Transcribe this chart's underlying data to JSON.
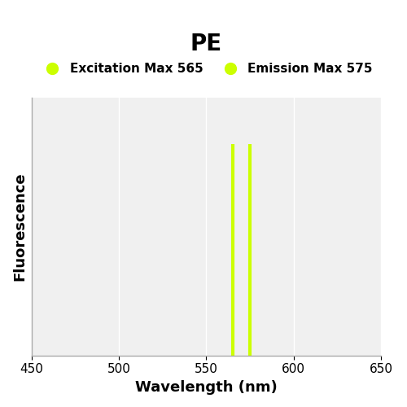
{
  "title": "PE",
  "title_fontsize": 20,
  "title_fontweight": "bold",
  "xlabel": "Wavelength (nm)",
  "ylabel": "Fluorescence",
  "xlabel_fontsize": 13,
  "ylabel_fontsize": 13,
  "xlabel_fontweight": "bold",
  "ylabel_fontweight": "bold",
  "xlim": [
    450,
    650
  ],
  "ylim": [
    0,
    1
  ],
  "xticks": [
    450,
    500,
    550,
    600,
    650
  ],
  "excitation_wavelength": 565,
  "emission_wavelength": 575,
  "line_color_excitation": "#ccff00",
  "line_color_emission": "#ccff00",
  "line_height_excitation": 0.82,
  "line_height_emission": 0.82,
  "line_width": 3,
  "legend_excitation_label": "Excitation Max 565",
  "legend_emission_label": "Emission Max 575",
  "legend_marker_color": "#ccff00",
  "background_color": "#ffffff",
  "plot_bg_color": "#f0f0f0",
  "grid_color": "#ffffff",
  "spine_color": "#aaaaaa",
  "tick_label_fontsize": 11,
  "legend_fontsize": 11,
  "legend_marker_size": 10
}
